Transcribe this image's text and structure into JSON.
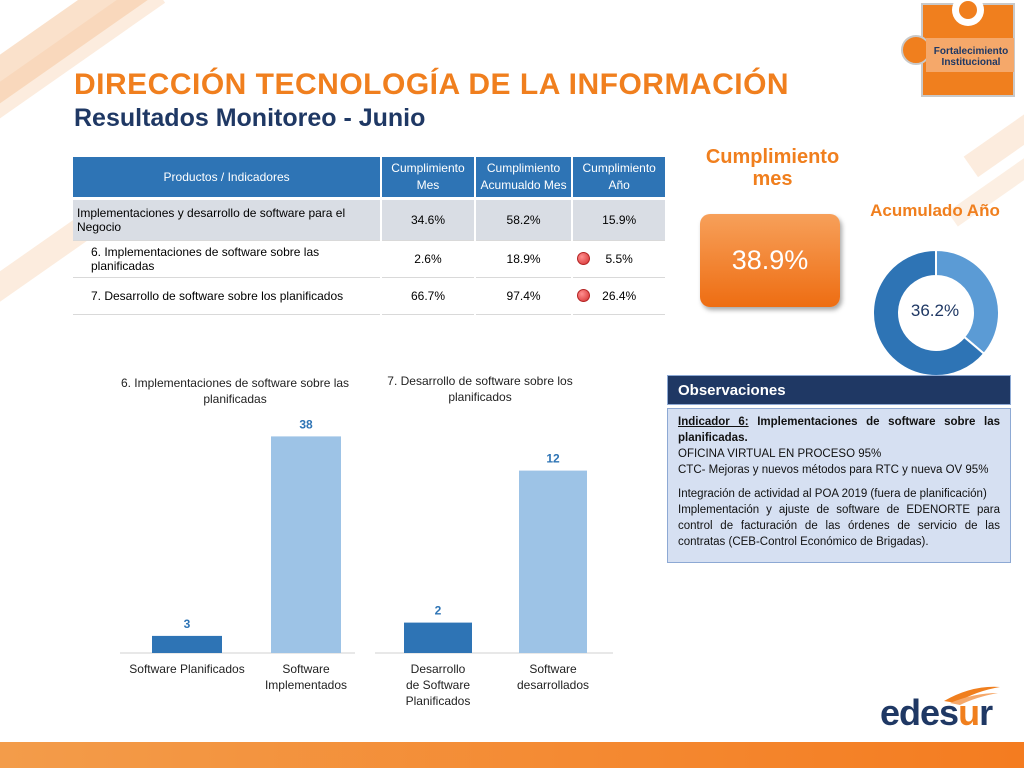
{
  "header": {
    "title": "DIRECCIÓN TECNOLOGÍA DE LA INFORMACIÓN",
    "subtitle": "Resultados Monitoreo - Junio",
    "badge": "Fortalecimiento Institucional"
  },
  "table": {
    "headers": [
      "Productos / Indicadores",
      "Cumplimiento Mes",
      "Cumplimiento Acumualdo Mes",
      "Cumplimiento Año"
    ],
    "rows": [
      {
        "label": "Implementaciones y desarrollo de software para el Negocio",
        "mes": "34.6%",
        "acumulado": "58.2%",
        "ano": "15.9%",
        "status": "none"
      },
      {
        "label": "6. Implementaciones de software sobre las planificadas",
        "mes": "2.6%",
        "acumulado": "18.9%",
        "ano": "5.5%",
        "status": "red"
      },
      {
        "label": "7. Desarrollo de software sobre los planificados",
        "mes": "66.7%",
        "acumulado": "97.4%",
        "ano": "26.4%",
        "status": "red"
      }
    ],
    "status_color": "#d42f2f"
  },
  "cumplimiento_mes": {
    "title": "Cumplimiento mes",
    "value": "38.9%"
  },
  "acumulado_ano": {
    "title": "Acumulado Año",
    "value": "36.2%"
  },
  "chart_data": [
    {
      "type": "bar",
      "title": "6. Implementaciones de software sobre las planificadas",
      "categories": [
        "Software Planificados",
        "Software Implementados"
      ],
      "values": [
        3,
        38
      ],
      "colors": [
        "#2e74b5",
        "#9dc3e6"
      ],
      "ylim": [
        0,
        40
      ],
      "data_labels": [
        "3",
        "38"
      ]
    },
    {
      "type": "bar",
      "title": "7. Desarrollo de software sobre los planificados",
      "categories": [
        "Desarrollo de Software Planificados",
        "Software desarrollados"
      ],
      "values": [
        2,
        12
      ],
      "colors": [
        "#2e74b5",
        "#9dc3e6"
      ],
      "ylim": [
        0,
        15
      ],
      "data_labels": [
        "2",
        "12"
      ]
    },
    {
      "type": "pie",
      "title": "Acumulado Año",
      "values": [
        36.2,
        63.8
      ],
      "colors": [
        "#5b9bd5",
        "#2e74b5"
      ],
      "center_label": "36.2%"
    }
  ],
  "observaciones": {
    "title": "Observaciones",
    "indicator_prefix": "Indicador 6:",
    "indicator_text": " Implementaciones de software sobre las planificadas.",
    "line1": "OFICINA VIRTUAL EN PROCESO 95%",
    "line2": "CTC- Mejoras y nuevos métodos para RTC  y nueva OV 95%",
    "line3": "Integración de actividad al POA 2019 (fuera de planificación)",
    "line4": "Implementación y ajuste  de software de EDENORTE para control de facturación de las órdenes de servicio de las contratas (CEB-Control Económico de Brigadas)."
  },
  "logo": {
    "part1": "edes",
    "part2": "u",
    "part3": "r"
  }
}
